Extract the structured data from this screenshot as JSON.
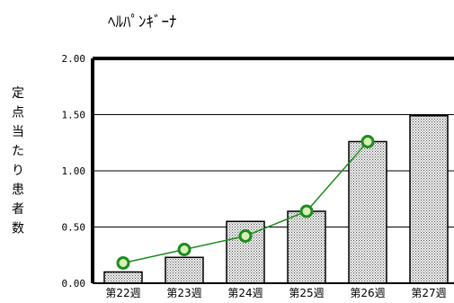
{
  "chart_data": {
    "type": "bar",
    "title": "ﾍﾙﾊﾟﾝｷﾞｰﾅ",
    "ylabel": "定点当たり患者数",
    "xlabel": "",
    "categories": [
      "第22週",
      "第23週",
      "第24週",
      "第25週",
      "第26週",
      "第27週"
    ],
    "values": [
      0.1,
      0.23,
      0.55,
      0.64,
      1.26,
      1.49
    ],
    "line_values": [
      0.18,
      0.3,
      0.42,
      0.64,
      1.26,
      null
    ],
    "ylim": [
      0,
      2.0
    ],
    "yticks": [
      "0.00",
      "0.50",
      "1.00",
      "1.50",
      "2.00"
    ],
    "grid": true,
    "colors": {
      "bar_fill": "#c8c8c8",
      "bar_stroke": "#000000",
      "line": "#1c8c1c",
      "marker_stroke": "#1c8c1c",
      "marker_fill": "#d8f0b8",
      "axis": "#000000",
      "grid": "#000000"
    }
  }
}
